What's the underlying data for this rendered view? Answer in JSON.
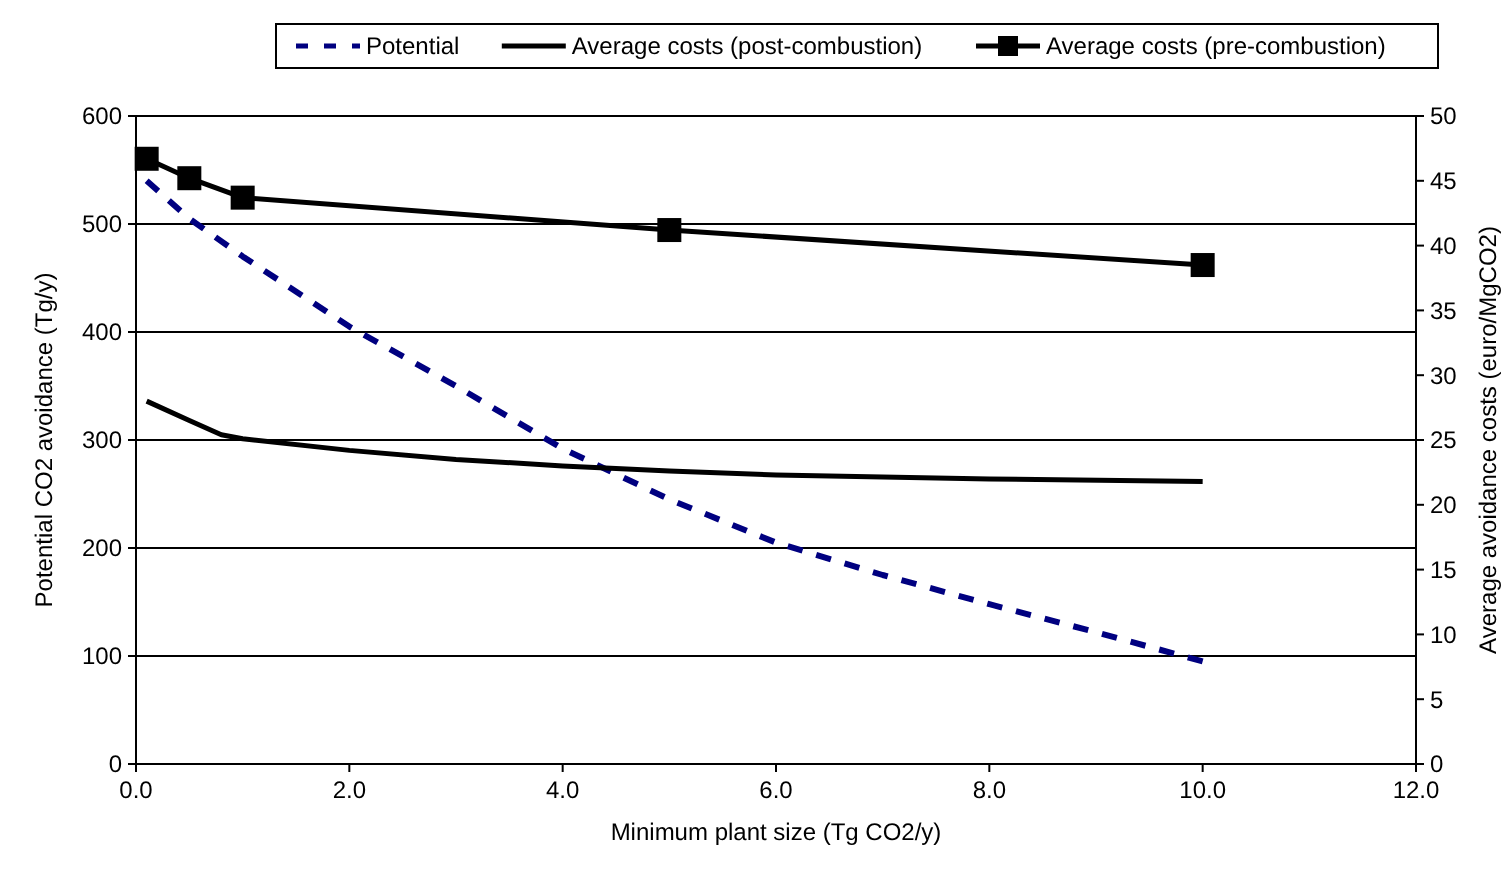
{
  "chart_data": {
    "type": "line",
    "xlabel": "Minimum plant size (Tg CO2/y)",
    "ylabel": "Potential CO2 avoidance (Tg/y)",
    "y2label": "Average avoidance costs (euro/MgCO2)",
    "xlim": [
      0,
      12
    ],
    "xticks": [
      {
        "value": 0,
        "label": "0.0"
      },
      {
        "value": 2,
        "label": "2.0"
      },
      {
        "value": 4,
        "label": "4.0"
      },
      {
        "value": 6,
        "label": "6.0"
      },
      {
        "value": 8,
        "label": "8.0"
      },
      {
        "value": 10,
        "label": "10.0"
      },
      {
        "value": 12,
        "label": "12.0"
      }
    ],
    "ylim": [
      0,
      600
    ],
    "yticks": [
      0,
      100,
      200,
      300,
      400,
      500,
      600
    ],
    "y2lim": [
      0,
      50
    ],
    "y2ticks": [
      0,
      5,
      10,
      15,
      20,
      25,
      30,
      35,
      40,
      45,
      50
    ],
    "grid": "y",
    "legend": "top",
    "series": [
      {
        "name": "Potential",
        "color": "#000080",
        "line_style": "dashed",
        "marker": "none",
        "x": [
          0.1,
          0.5,
          1,
          2,
          3,
          4,
          5,
          6,
          7,
          8,
          9,
          10
        ],
        "values": [
          540,
          505,
          470,
          405,
          350,
          292,
          245,
          205,
          175,
          148,
          122,
          95
        ]
      },
      {
        "name": "Average costs (post-combustion)",
        "color": "#000000",
        "line_style": "solid",
        "marker": "none",
        "axis": "y2",
        "x": [
          0.1,
          0.5,
          0.8,
          1,
          2,
          3,
          4,
          5,
          6,
          8,
          10
        ],
        "values": [
          28.0,
          26.5,
          25.4,
          25.1,
          24.2,
          23.5,
          23.0,
          22.6,
          22.3,
          22.0,
          21.8
        ]
      },
      {
        "name": "Average costs (pre-combustion)",
        "color": "#000000",
        "line_style": "solid",
        "marker": "square",
        "axis": "y2",
        "x": [
          0.1,
          0.5,
          1,
          5,
          10
        ],
        "values": [
          46.7,
          45.2,
          43.7,
          41.2,
          38.5
        ]
      }
    ]
  }
}
